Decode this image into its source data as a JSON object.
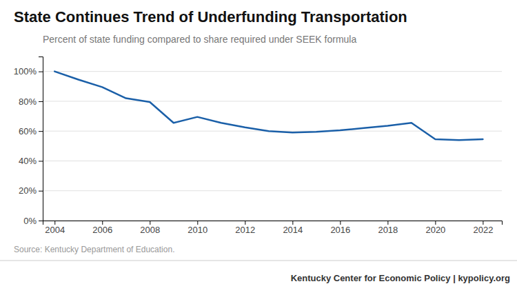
{
  "chart_data": {
    "type": "line",
    "title": "State Continues Trend of Underfunding Transportation",
    "subtitle": "Percent of state funding compared to share required under SEEK formula",
    "source": "Source: Kentucky Department of Education.",
    "footer": "Kentucky Center for Economic Policy | kypolicy.org",
    "color": "#1a5fa8",
    "x": [
      2004,
      2005,
      2006,
      2007,
      2008,
      2009,
      2010,
      2011,
      2012,
      2013,
      2014,
      2015,
      2016,
      2017,
      2018,
      2019,
      2020,
      2021,
      2022
    ],
    "values": [
      1.0,
      0.945,
      0.895,
      0.82,
      0.795,
      0.655,
      0.695,
      0.655,
      0.625,
      0.6,
      0.59,
      0.595,
      0.605,
      0.62,
      0.635,
      0.655,
      0.545,
      0.54,
      0.545
    ],
    "xlim": [
      2003.5,
      2022.8
    ],
    "ylim": [
      0,
      1.1
    ],
    "xticks": [
      2004,
      2006,
      2008,
      2010,
      2012,
      2014,
      2016,
      2018,
      2020,
      2022
    ],
    "yticks": [
      {
        "value": 0,
        "label": "0%"
      },
      {
        "value": 0.2,
        "label": "20%"
      },
      {
        "value": 0.4,
        "label": "40%"
      },
      {
        "value": 0.6,
        "label": "60%"
      },
      {
        "value": 0.8,
        "label": "80%"
      },
      {
        "value": 1.0,
        "label": "100%"
      }
    ],
    "grid": "y"
  }
}
